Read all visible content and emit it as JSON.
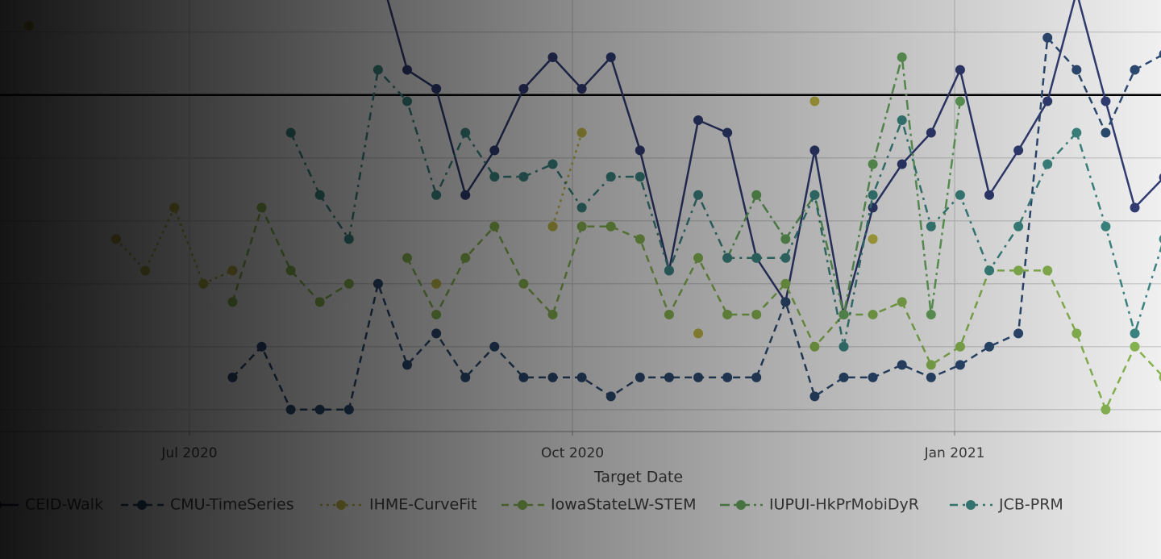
{
  "chart_data": {
    "type": "line",
    "x_label": "Target Date",
    "x": [
      -3,
      -2,
      -1,
      0,
      1,
      2,
      3,
      4,
      5,
      6,
      7,
      8,
      9,
      10,
      11,
      12,
      13,
      14,
      15,
      16,
      17,
      18,
      19,
      20,
      21,
      22,
      23,
      24,
      25,
      26,
      27,
      28,
      29,
      30,
      31,
      32,
      33,
      34,
      35,
      36
    ],
    "xlim": [
      -3.99,
      35.9
    ],
    "xticks": [
      {
        "value": 2.52,
        "label": "Jul 2020"
      },
      {
        "value": 15.68,
        "label": "Oct 2020"
      },
      {
        "value": 28.81,
        "label": "Jan 2021"
      }
    ],
    "ylim": [
      -0.35,
      6.51
    ],
    "yticks": [
      0,
      1,
      2,
      3,
      4,
      5,
      6
    ],
    "hline": 5,
    "grid": true,
    "series": [
      {
        "name": "CEID-Walk",
        "color": "#34407a",
        "dash": "none",
        "values": [
          null,
          null,
          null,
          null,
          null,
          null,
          null,
          null,
          null,
          null,
          null,
          null,
          7.06,
          5.4,
          5.1,
          3.41,
          4.12,
          5.1,
          5.6,
          5.1,
          5.6,
          4.12,
          2.21,
          4.6,
          4.4,
          2.41,
          1.71,
          4.12,
          1.51,
          3.21,
          3.9,
          4.4,
          5.4,
          3.41,
          4.12,
          4.9,
          6.64,
          4.9,
          3.21,
          3.69
        ]
      },
      {
        "name": "CMU-TimeSeries",
        "color": "#2f4f78",
        "dash": "9,6",
        "values": [
          null,
          null,
          null,
          null,
          null,
          null,
          null,
          0.51,
          1,
          0,
          0,
          0,
          2,
          0.71,
          1.21,
          0.51,
          1,
          0.51,
          0.51,
          0.51,
          0.21,
          0.51,
          0.51,
          0.51,
          0.51,
          0.51,
          1.71,
          0.21,
          0.51,
          0.51,
          0.71,
          0.51,
          0.71,
          1,
          1.21,
          5.91,
          5.4,
          4.4,
          5.4,
          5.65
        ]
      },
      {
        "name": "IHME-CurveFit",
        "color": "#c9c14a",
        "dash": "3,5",
        "values": [
          6.1,
          null,
          null,
          2.71,
          2.21,
          3.21,
          2,
          2.21,
          null,
          null,
          null,
          null,
          null,
          null,
          2,
          null,
          null,
          null,
          2.91,
          4.4,
          null,
          null,
          null,
          1.21,
          null,
          null,
          null,
          4.9,
          null,
          2.71,
          null,
          null,
          null,
          null,
          null,
          null,
          null,
          null,
          null,
          null
        ]
      },
      {
        "name": "IowaStateLW-STEM",
        "color": "#8fbf55",
        "dash": "9,6",
        "values": [
          null,
          null,
          null,
          null,
          null,
          null,
          null,
          1.71,
          3.21,
          2.21,
          1.71,
          2,
          null,
          2.41,
          1.51,
          2.41,
          2.91,
          2,
          1.51,
          2.91,
          2.91,
          2.71,
          1.51,
          2.41,
          1.51,
          1.51,
          2,
          1,
          1.51,
          1.51,
          1.71,
          0.71,
          1,
          2.21,
          2.21,
          2.21,
          1.21,
          0,
          1,
          0.51
        ]
      },
      {
        "name": "IUPUI-HkPrMobiDyR",
        "color": "#6cae63",
        "dash": "12,5,3,5",
        "values": [
          null,
          null,
          null,
          null,
          null,
          null,
          null,
          null,
          null,
          null,
          null,
          null,
          null,
          null,
          null,
          null,
          null,
          null,
          null,
          null,
          null,
          null,
          null,
          null,
          2.41,
          3.41,
          2.71,
          3.41,
          1.51,
          3.9,
          5.6,
          1.51,
          4.9,
          null,
          null,
          null,
          null,
          null,
          null,
          null
        ]
      },
      {
        "name": "JCB-PRM",
        "color": "#3f8d88",
        "dash": "10,6,3,6",
        "values": [
          null,
          null,
          null,
          null,
          null,
          null,
          null,
          null,
          null,
          4.4,
          3.41,
          2.71,
          5.4,
          4.9,
          3.41,
          4.4,
          3.7,
          3.7,
          3.9,
          3.21,
          3.7,
          3.7,
          2.21,
          3.41,
          2.41,
          2.41,
          2.41,
          3.41,
          1,
          3.41,
          4.6,
          2.91,
          3.41,
          2.21,
          2.91,
          3.9,
          4.4,
          2.91,
          1.21,
          2.71
        ]
      }
    ]
  }
}
